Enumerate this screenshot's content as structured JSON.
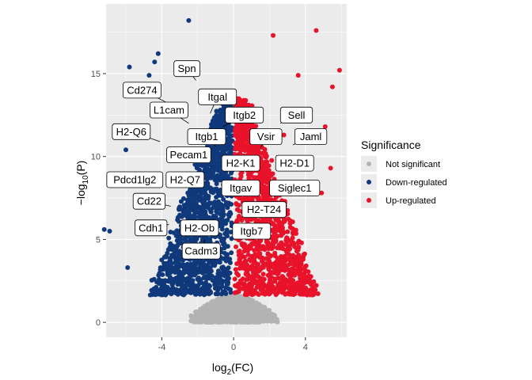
{
  "chart_data": {
    "type": "scatter",
    "title": "",
    "xlabel": "log2(FC)",
    "ylabel": "-log10(P)",
    "xlim": [
      -7.1,
      6.3
    ],
    "ylim": [
      -0.9,
      19.2
    ],
    "x_ticks": [
      -4,
      0,
      4
    ],
    "y_ticks": [
      0,
      5,
      10,
      15
    ],
    "x_tick_labels": [
      "-4",
      "0",
      "4"
    ],
    "y_tick_labels": [
      "0",
      "5",
      "10",
      "15"
    ],
    "grid": true,
    "legend_position": "right",
    "legend_title": "Significance",
    "categories": [
      {
        "name": "Not significant",
        "color": "#b3b3b3"
      },
      {
        "name": "Down-regulated",
        "color": "#10397c"
      },
      {
        "name": "Up-regulated",
        "color": "#e8132a"
      }
    ],
    "cloud": {
      "down": {
        "x_range": [
          -4.5,
          -0.05
        ],
        "y_range": [
          1.65,
          13.5
        ],
        "count": 1400
      },
      "up": {
        "x_range": [
          0.05,
          4.5
        ],
        "y_range": [
          1.65,
          13.5
        ],
        "count": 1400
      },
      "not_significant": {
        "x_range": [
          -2.5,
          2.5
        ],
        "y_range": [
          0,
          1.65
        ],
        "count": 1300
      }
    },
    "outliers": [
      {
        "x": -2.5,
        "y": 18.2,
        "group": "Down-regulated"
      },
      {
        "x": -4.2,
        "y": 16.2,
        "group": "Down-regulated"
      },
      {
        "x": -4.4,
        "y": 15.7,
        "group": "Down-regulated"
      },
      {
        "x": -5.8,
        "y": 15.4,
        "group": "Down-regulated"
      },
      {
        "x": -4.7,
        "y": 14.9,
        "group": "Down-regulated"
      },
      {
        "x": -6.0,
        "y": 10.4,
        "group": "Down-regulated"
      },
      {
        "x": -6.9,
        "y": 5.5,
        "group": "Down-regulated"
      },
      {
        "x": -7.2,
        "y": 5.6,
        "group": "Down-regulated"
      },
      {
        "x": -5.9,
        "y": 3.3,
        "group": "Down-regulated"
      },
      {
        "x": -4.6,
        "y": 7.0,
        "group": "Down-regulated"
      },
      {
        "x": -5.2,
        "y": 8.6,
        "group": "Down-regulated"
      },
      {
        "x": 2.2,
        "y": 17.3,
        "group": "Up-regulated"
      },
      {
        "x": 4.6,
        "y": 17.6,
        "group": "Up-regulated"
      },
      {
        "x": 5.9,
        "y": 15.2,
        "group": "Up-regulated"
      },
      {
        "x": 5.5,
        "y": 14.2,
        "group": "Up-regulated"
      },
      {
        "x": 3.6,
        "y": 14.9,
        "group": "Up-regulated"
      },
      {
        "x": 5.1,
        "y": 11.8,
        "group": "Up-regulated"
      },
      {
        "x": 5.4,
        "y": 9.3,
        "group": "Up-regulated"
      },
      {
        "x": 4.9,
        "y": 7.8,
        "group": "Up-regulated"
      },
      {
        "x": 3.4,
        "y": 8.3,
        "group": "Up-regulated"
      },
      {
        "x": 2.8,
        "y": 11.3,
        "group": "Up-regulated"
      }
    ],
    "labels": [
      {
        "text": "Spn",
        "x": -2.6,
        "y": 15.3,
        "px": -2.1,
        "py": 14.6
      },
      {
        "text": "Cd274",
        "x": -5.1,
        "y": 14.0,
        "px": -3.8,
        "py": 13.3
      },
      {
        "text": "Itgal",
        "x": -0.9,
        "y": 13.6,
        "px": -1.3,
        "py": 12.6
      },
      {
        "text": "L1cam",
        "x": -3.6,
        "y": 12.8,
        "px": -2.5,
        "py": 12.0
      },
      {
        "text": "Itgb2",
        "x": 0.6,
        "y": 12.5,
        "px": -0.6,
        "py": 11.8
      },
      {
        "text": "Sell",
        "x": 3.5,
        "y": 12.5,
        "px": 2.6,
        "py": 12.0
      },
      {
        "text": "H2-Q6",
        "x": -5.7,
        "y": 11.5,
        "px": -4.1,
        "py": 10.9
      },
      {
        "text": "Itgb1",
        "x": -1.5,
        "y": 11.2,
        "px": -1.0,
        "py": 10.6
      },
      {
        "text": "Vsir",
        "x": 1.8,
        "y": 11.2,
        "px": 1.5,
        "py": 10.5
      },
      {
        "text": "Jaml",
        "x": 4.3,
        "y": 11.2,
        "px": 3.3,
        "py": 10.7
      },
      {
        "text": "Pecam1",
        "x": -2.5,
        "y": 10.1,
        "px": -1.6,
        "py": 9.7
      },
      {
        "text": "H2-K1",
        "x": 0.4,
        "y": 9.6,
        "px": -0.3,
        "py": 9.3
      },
      {
        "text": "H2-D1",
        "x": 3.4,
        "y": 9.6,
        "px": 2.5,
        "py": 9.3
      },
      {
        "text": "Pdcd1lg2",
        "x": -5.5,
        "y": 8.6,
        "px": -4.0,
        "py": 8.7
      },
      {
        "text": "H2-Q7",
        "x": -2.7,
        "y": 8.6,
        "px": -1.9,
        "py": 8.3
      },
      {
        "text": "Itgav",
        "x": 0.4,
        "y": 8.1,
        "px": -0.2,
        "py": 7.6
      },
      {
        "text": "Siglec1",
        "x": 3.4,
        "y": 8.1,
        "px": 2.6,
        "py": 7.7
      },
      {
        "text": "Cd22",
        "x": -4.7,
        "y": 7.3,
        "px": -3.5,
        "py": 7.0
      },
      {
        "text": "H2-T24",
        "x": 1.7,
        "y": 6.8,
        "px": 1.8,
        "py": 6.6
      },
      {
        "text": "Cdh1",
        "x": -4.6,
        "y": 5.7,
        "px": -3.6,
        "py": 5.9
      },
      {
        "text": "H2-Ob",
        "x": -1.9,
        "y": 5.7,
        "px": -1.7,
        "py": 5.3
      },
      {
        "text": "Itgb7",
        "x": 1.0,
        "y": 5.5,
        "px": 1.3,
        "py": 6.0
      },
      {
        "text": "Cadm3",
        "x": -1.8,
        "y": 4.3,
        "px": -1.6,
        "py": 5.0
      }
    ]
  }
}
